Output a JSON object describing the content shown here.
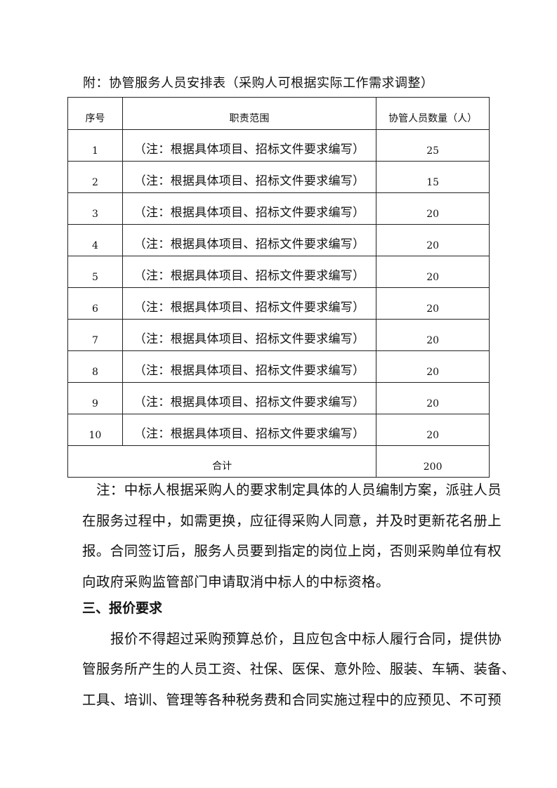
{
  "caption": "附：协管服务人员安排表（采购人可根据实际工作需求调整）",
  "table": {
    "headers": [
      "序号",
      "职责范围",
      "协管人员数量（人）"
    ],
    "rows": [
      [
        "1",
        "（注：根据具体项目、招标文件要求编写）",
        "25"
      ],
      [
        "2",
        "（注：根据具体项目、招标文件要求编写）",
        "15"
      ],
      [
        "3",
        "（注：根据具体项目、招标文件要求编写）",
        "20"
      ],
      [
        "4",
        "（注：根据具体项目、招标文件要求编写）",
        "20"
      ],
      [
        "5",
        "（注：根据具体项目、招标文件要求编写）",
        "20"
      ],
      [
        "6",
        "（注：根据具体项目、招标文件要求编写）",
        "20"
      ],
      [
        "7",
        "（注：根据具体项目、招标文件要求编写）",
        "20"
      ],
      [
        "8",
        "（注：根据具体项目、招标文件要求编写）",
        "20"
      ],
      [
        "9",
        "（注：根据具体项目、招标文件要求编写）",
        "20"
      ],
      [
        "10",
        "（注：根据具体项目、招标文件要求编写）",
        "20"
      ]
    ],
    "total_label": "合计",
    "total_value": "200"
  },
  "note_lines": [
    "注：中标人根据采购人的要求制定具体的人员编制方案，派驻人员",
    "在服务过程中，如需更换，应征得采购人同意，并及时更新花名册上",
    "报。合同签订后，服务人员要到指定的岗位上岗，否则采购单位有权",
    "向政府采购监管部门申请取消中标人的中标资格。"
  ],
  "section_heading": "三、报价要求",
  "price_lines": [
    "报价不得超过采购预算总价，且应包含中标人履行合同，提供协",
    "管服务所产生的人员工资、社保、医保、意外险、服装、车辆、装备、",
    "工具、培训、管理等各种税务费和合同实施过程中的应预见、不可预"
  ]
}
